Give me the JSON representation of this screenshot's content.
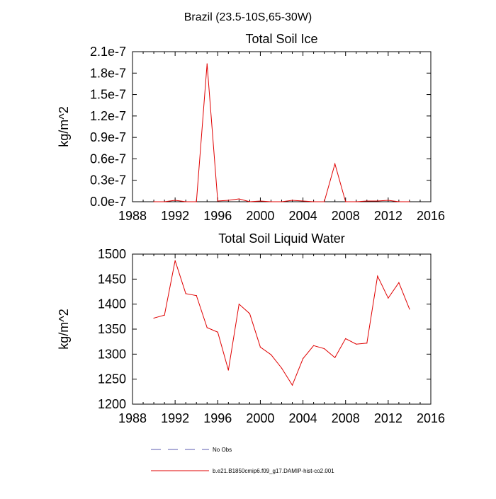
{
  "figure": {
    "title": "Brazil (23.5-10S,65-30W)"
  },
  "legend": {
    "entries": [
      {
        "label": "No Obs",
        "color": "#5b5bb0",
        "dash": true
      },
      {
        "label": "b.e21.B1850cmip6.f09_g17.DAMIP-hist-co2.001",
        "color": "#e00000",
        "dash": false
      }
    ]
  },
  "chart_data": [
    {
      "type": "line",
      "title": "Total Soil Ice",
      "ylabel": "kg/m^2",
      "xlim": [
        1988,
        2016
      ],
      "ylim": [
        0.0,
        2.1e-07
      ],
      "xticks": [
        1988,
        1992,
        1996,
        2000,
        2004,
        2008,
        2012,
        2016
      ],
      "xtick_labels": [
        "1988",
        "1992",
        "1996",
        "2000",
        "2004",
        "2008",
        "2012",
        "2016"
      ],
      "yticks": [
        0.0,
        3e-08,
        6e-08,
        9e-08,
        1.2e-07,
        1.5e-07,
        1.8e-07,
        2.1e-07
      ],
      "ytick_labels": [
        "0.0e-7",
        "0.3e-7",
        "0.6e-7",
        "0.9e-7",
        "1.2e-7",
        "1.5e-7",
        "1.8e-7",
        "2.1e-7"
      ],
      "x_minor_step": 1,
      "series": [
        {
          "color": "#e00000",
          "x": [
            1990,
            1991,
            1992,
            1993,
            1994,
            1995,
            1996,
            1997,
            1998,
            1999,
            2000,
            2001,
            2002,
            2003,
            2004,
            2005,
            2006,
            2007,
            2008,
            2009,
            2010,
            2011,
            2012,
            2013,
            2014
          ],
          "y": [
            0.0,
            0.0,
            2e-09,
            0.0,
            0.0,
            1.93e-07,
            1e-09,
            2e-09,
            4e-09,
            0.0,
            1e-09,
            0.0,
            0.0,
            2e-09,
            1e-09,
            0.0,
            0.0,
            5.3e-08,
            0.0,
            0.0,
            1e-09,
            1e-09,
            2e-09,
            0.0,
            0.0
          ]
        }
      ]
    },
    {
      "type": "line",
      "title": "Total Soil Liquid Water",
      "ylabel": "kg/m^2",
      "xlim": [
        1988,
        2016
      ],
      "ylim": [
        1200,
        1500
      ],
      "xticks": [
        1988,
        1992,
        1996,
        2000,
        2004,
        2008,
        2012,
        2016
      ],
      "xtick_labels": [
        "1988",
        "1992",
        "1996",
        "2000",
        "2004",
        "2008",
        "2012",
        "2016"
      ],
      "yticks": [
        1200,
        1250,
        1300,
        1350,
        1400,
        1450,
        1500
      ],
      "ytick_labels": [
        "1200",
        "1250",
        "1300",
        "1350",
        "1400",
        "1450",
        "1500"
      ],
      "x_minor_step": 1,
      "series": [
        {
          "color": "#e00000",
          "x": [
            1990,
            1991,
            1992,
            1993,
            1994,
            1995,
            1996,
            1997,
            1998,
            1999,
            2000,
            2001,
            2002,
            2003,
            2004,
            2005,
            2006,
            2007,
            2008,
            2009,
            2010,
            2011,
            2012,
            2013,
            2014
          ],
          "y": [
            1372,
            1378,
            1487,
            1421,
            1417,
            1353,
            1344,
            1268,
            1400,
            1381,
            1314,
            1299,
            1272,
            1238,
            1291,
            1317,
            1311,
            1293,
            1331,
            1320,
            1322,
            1456,
            1412,
            1443,
            1390
          ]
        }
      ]
    }
  ]
}
